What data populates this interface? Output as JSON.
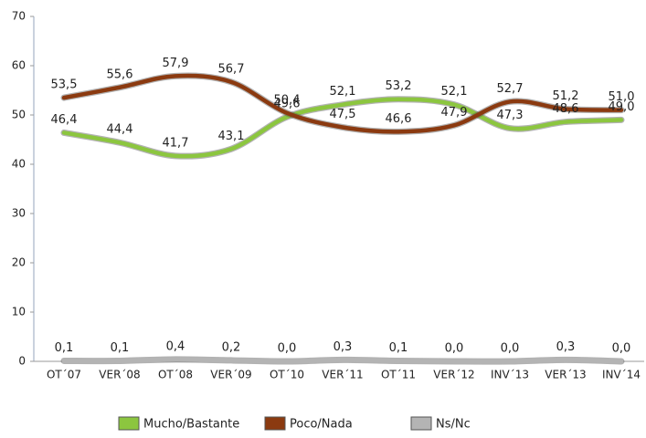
{
  "chart_data": {
    "type": "line",
    "categories": [
      "OT´07",
      "VER´08",
      "OT´08",
      "VER´09",
      "OT´10",
      "VER´11",
      "OT´11",
      "VER´12",
      "INV´13",
      "VER´13",
      "INV´14"
    ],
    "series": [
      {
        "name": "Mucho/Bastante",
        "color": "#8cc63f",
        "values": [
          46.4,
          44.4,
          41.7,
          43.1,
          49.6,
          52.1,
          53.2,
          52.1,
          47.3,
          48.6,
          49.0
        ],
        "value_labels": [
          "46,4",
          "44,4",
          "41,7",
          "43,1",
          "49,6",
          "52,1",
          "53,2",
          "52,1",
          "47,3",
          "48,6",
          "49,0"
        ]
      },
      {
        "name": "Poco/Nada",
        "color": "#8b3a10",
        "values": [
          53.5,
          55.6,
          57.9,
          56.7,
          50.4,
          47.5,
          46.6,
          47.9,
          52.7,
          51.2,
          51.0
        ],
        "value_labels": [
          "53,5",
          "55,6",
          "57,9",
          "56,7",
          "50,4",
          "47,5",
          "46,6",
          "47,9",
          "52,7",
          "51,2",
          "51,0"
        ]
      },
      {
        "name": "Ns/Nc",
        "color": "#b4b4b4",
        "values": [
          0.1,
          0.1,
          0.4,
          0.2,
          0.0,
          0.3,
          0.1,
          0.0,
          0.0,
          0.3,
          0.0
        ],
        "value_labels": [
          "0,1",
          "0,1",
          "0,4",
          "0,2",
          "0,0",
          "0,3",
          "0,1",
          "0,0",
          "0,0",
          "0,3",
          "0,0"
        ]
      }
    ],
    "ylim": [
      0,
      70
    ],
    "yticks": [
      0,
      10,
      20,
      30,
      40,
      50,
      60,
      70
    ]
  }
}
